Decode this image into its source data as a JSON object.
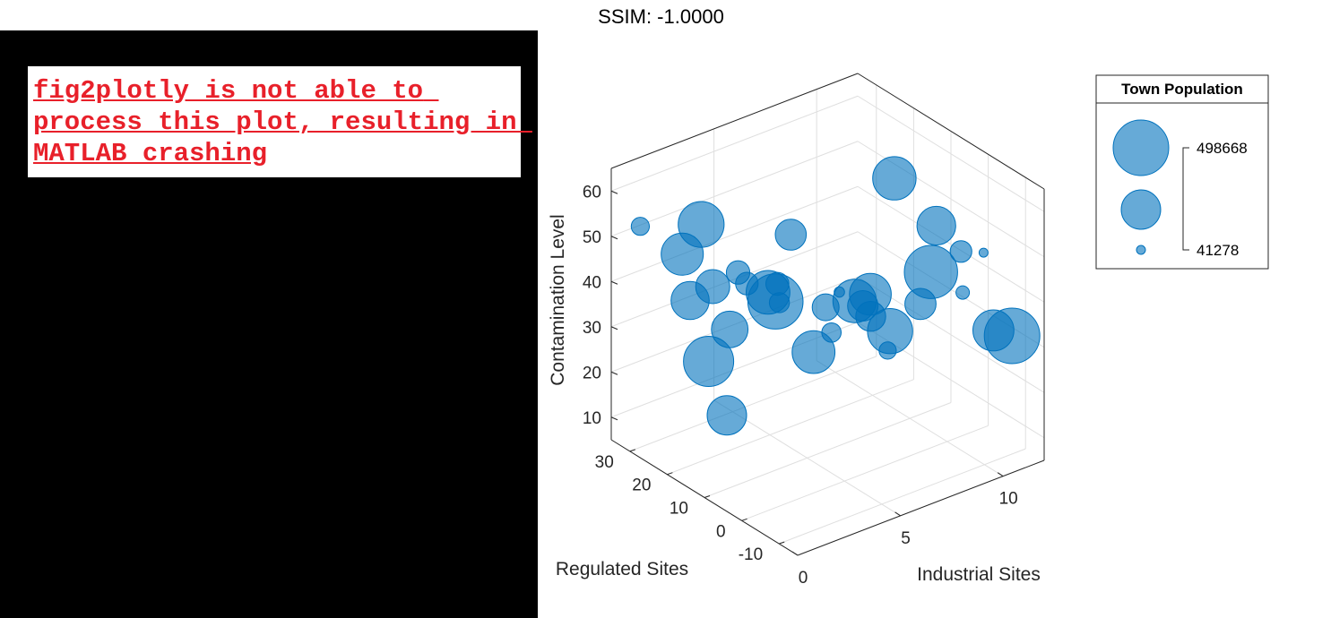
{
  "header": {
    "ssim_text": "SSIM: -1.0000"
  },
  "error_panel": {
    "message": "fig2plotly is not able to process this plot, resulting in MATLAB crashing"
  },
  "chart_data": {
    "type": "scatter",
    "subtype": "bubble-3d",
    "title": "",
    "xlabel": "Industrial Sites",
    "ylabel": "Regulated Sites",
    "zlabel": "Contamination Level",
    "xlim": [
      0,
      12
    ],
    "ylim": [
      -15,
      35
    ],
    "zlim": [
      5,
      65
    ],
    "xticks": [
      0,
      5,
      10
    ],
    "yticks": [
      -10,
      0,
      10,
      20,
      30
    ],
    "zticks": [
      10,
      20,
      30,
      40,
      50,
      60
    ],
    "color": "#0072BD",
    "grid": true,
    "legend": {
      "title": "Town Population",
      "max_label": "498668",
      "min_label": "41278",
      "placement": "right"
    },
    "points": [
      {
        "x": 0.53,
        "y": 30.13,
        "z": 53.74,
        "size": 91304
      },
      {
        "x": 3.9,
        "y": 32.38,
        "z": 47.13,
        "size": 361209
      },
      {
        "x": 3.04,
        "y": 32.72,
        "z": 41.87,
        "size": 315062
      },
      {
        "x": 2.94,
        "y": 30.04,
        "z": 33.18,
        "size": 269155
      },
      {
        "x": 2.14,
        "y": 20.68,
        "z": 25.89,
        "size": 419301
      },
      {
        "x": 2.03,
        "y": 15.17,
        "z": 16.98,
        "size": 284108
      },
      {
        "x": 3.31,
        "y": 21.46,
        "z": 30.53,
        "size": 251447
      },
      {
        "x": 5.2,
        "y": 21.61,
        "z": 35.33,
        "size": 334060
      },
      {
        "x": 5.2,
        "y": 19.61,
        "z": 34.34,
        "size": 493081
      },
      {
        "x": 5.66,
        "y": 21.63,
        "z": 36.41,
        "size": 125017
      },
      {
        "x": 6.05,
        "y": 23.23,
        "z": 30.74,
        "size": 104099
      },
      {
        "x": 6.02,
        "y": 13.91,
        "z": 24.63,
        "size": 322658
      },
      {
        "x": 6.68,
        "y": 12.73,
        "z": 28.39,
        "size": 99008
      },
      {
        "x": 7.06,
        "y": 16.39,
        "z": 31.44,
        "size": 158000
      },
      {
        "x": 7.65,
        "y": 15.96,
        "z": 34.0,
        "size": 48000
      },
      {
        "x": 7.96,
        "y": 13.59,
        "z": 32.71,
        "size": 330000
      },
      {
        "x": 8.19,
        "y": 12.63,
        "z": 31.7,
        "size": 190000
      },
      {
        "x": 8.23,
        "y": 10.74,
        "z": 30.29,
        "size": 185000
      },
      {
        "x": 8.48,
        "y": 7.58,
        "z": 23.9,
        "size": 85000
      },
      {
        "x": 8.91,
        "y": 14.6,
        "z": 32.0,
        "size": 310000
      },
      {
        "x": 9.07,
        "y": 10.18,
        "z": 25.84,
        "size": 352000
      },
      {
        "x": 9.65,
        "y": 5.23,
        "z": 33.35,
        "size": 196000
      },
      {
        "x": 10.01,
        "y": 4.4,
        "z": 40.22,
        "size": 465000
      },
      {
        "x": 10.93,
        "y": 8.02,
        "z": 47.0,
        "size": 275000
      },
      {
        "x": 10.01,
        "y": 14.2,
        "z": 55.92,
        "size": 331000
      },
      {
        "x": 11.22,
        "y": 2.56,
        "z": 34.5,
        "size": 63000
      },
      {
        "x": 11.72,
        "y": 5.77,
        "z": 41.05,
        "size": 116000
      },
      {
        "x": 11.5,
        "y": -4.14,
        "z": 29.06,
        "size": 301000
      },
      {
        "x": 11.6,
        "y": -8.59,
        "z": 29.94,
        "size": 498668
      },
      {
        "x": 10.37,
        "y": -7.73,
        "z": 50.05,
        "size": 41278
      },
      {
        "x": 4.5,
        "y": 23.41,
        "z": 37.58,
        "size": 122000
      },
      {
        "x": 4.2,
        "y": 24.12,
        "z": 40.21,
        "size": 130000
      },
      {
        "x": 3.1,
        "y": 24.86,
        "z": 38.62,
        "size": 225000
      },
      {
        "x": 6.6,
        "y": 23.21,
        "z": 44.83,
        "size": 195000
      }
    ]
  }
}
